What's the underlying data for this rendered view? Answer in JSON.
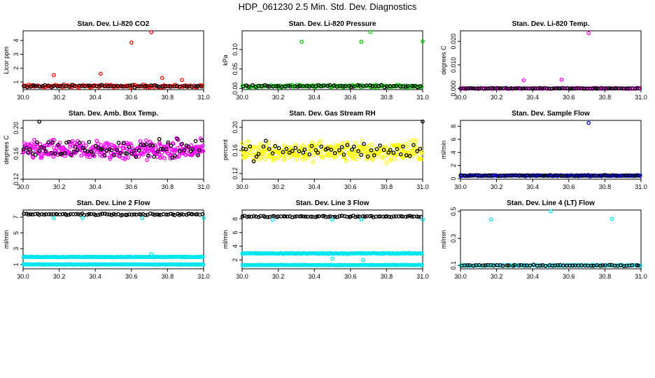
{
  "title": "HDP_061230  2.5 Min. Std. Dev. Diagnostics",
  "colors": {
    "black": "#000000",
    "red": "#ff0000",
    "green": "#00cc00",
    "magenta": "#ff00ff",
    "yellow": "#ffff00",
    "blue": "#0000ff",
    "cyan": "#00e5ee"
  },
  "chart_data": [
    {
      "type": "scatter",
      "title": "Stan. Dev. Li-820 CO2",
      "xlabel": "",
      "ylabel": "Licor ppm",
      "xlim": [
        30.0,
        31.0
      ],
      "ylim": [
        0.45,
        4.7
      ],
      "xticks": [
        "30.0",
        "30.2",
        "30.4",
        "30.6",
        "30.8",
        "31.0"
      ],
      "yticks": [
        "1",
        "2",
        "3",
        "4"
      ],
      "series": [
        {
          "name": "red points",
          "color": "red",
          "baseline": 0.7,
          "spread": 0.15,
          "count": 130
        },
        {
          "name": "black points",
          "color": "black",
          "baseline": 0.7,
          "spread": 0.12,
          "count": 60
        }
      ],
      "outliers": [
        {
          "x": 0.17,
          "y": 1.5,
          "color": "red"
        },
        {
          "x": 0.43,
          "y": 1.6,
          "color": "red"
        },
        {
          "x": 0.6,
          "y": 3.85,
          "color": "red"
        },
        {
          "x": 0.71,
          "y": 4.6,
          "color": "red"
        },
        {
          "x": 0.77,
          "y": 1.3,
          "color": "red"
        },
        {
          "x": 0.88,
          "y": 1.15,
          "color": "red"
        }
      ]
    },
    {
      "type": "scatter",
      "title": "Stan. Dev. Li-820 Pressure",
      "xlabel": "",
      "ylabel": "kPa",
      "xlim": [
        30.0,
        31.0
      ],
      "ylim": [
        -0.003,
        0.148
      ],
      "xticks": [
        "30.0",
        "30.2",
        "30.4",
        "30.6",
        "30.8",
        "31.0"
      ],
      "yticks": [
        "0.00",
        "0.05",
        "0.10"
      ],
      "series": [
        {
          "name": "green points",
          "color": "green",
          "baseline": 0.006,
          "spread": 0.005,
          "count": 130
        },
        {
          "name": "black points",
          "color": "black",
          "baseline": 0.006,
          "spread": 0.004,
          "count": 60
        }
      ],
      "outliers": [
        {
          "x": 0.33,
          "y": 0.12,
          "color": "green"
        },
        {
          "x": 0.66,
          "y": 0.12,
          "color": "green"
        },
        {
          "x": 0.71,
          "y": 0.145,
          "color": "green"
        },
        {
          "x": 1.0,
          "y": 0.121,
          "color": "green"
        }
      ]
    },
    {
      "type": "scatter",
      "title": "Stan. Dev. Li-820 Temp.",
      "xlabel": "",
      "ylabel": "degrees C",
      "xlim": [
        30.0,
        31.0
      ],
      "ylim": [
        -0.0005,
        0.0245
      ],
      "xticks": [
        "30.0",
        "30.2",
        "30.4",
        "30.6",
        "30.8",
        "31.0"
      ],
      "yticks": [
        "0.000",
        "0.010",
        "0.020"
      ],
      "series": [
        {
          "name": "magenta points",
          "color": "magenta",
          "baseline": 0.0,
          "spread": 0.0003,
          "count": 130
        },
        {
          "name": "black points",
          "color": "black",
          "baseline": 0.0,
          "spread": 0.0002,
          "count": 80
        }
      ],
      "outliers": [
        {
          "x": 0.35,
          "y": 0.0035,
          "color": "magenta"
        },
        {
          "x": 0.56,
          "y": 0.0037,
          "color": "magenta"
        },
        {
          "x": 0.71,
          "y": 0.0235,
          "color": "magenta"
        }
      ]
    },
    {
      "type": "scatter",
      "title": "Stan. Dev. Amb. Box Temp.",
      "xlabel": "",
      "ylabel": "degrees C",
      "xlim": [
        30.0,
        31.0
      ],
      "ylim": [
        0.12,
        0.212
      ],
      "xticks": [
        "30.0",
        "30.2",
        "30.4",
        "30.6",
        "30.8",
        "31.0"
      ],
      "yticks": [
        "0.12",
        "0.16",
        "0.20"
      ],
      "series": [
        {
          "name": "magenta points",
          "color": "magenta",
          "baseline": 0.165,
          "spread": 0.022,
          "count": 330
        },
        {
          "name": "black points",
          "color": "black",
          "baseline": 0.168,
          "spread": 0.02,
          "count": 80
        }
      ],
      "outliers": [
        {
          "x": 0.09,
          "y": 0.21,
          "color": "black"
        }
      ]
    },
    {
      "type": "scatter",
      "title": "Stan. Dev. Gas Stream RH",
      "xlabel": "",
      "ylabel": "percent",
      "xlim": [
        30.0,
        31.0
      ],
      "ylim": [
        0.11,
        0.212
      ],
      "xticks": [
        "30.0",
        "30.2",
        "30.4",
        "30.6",
        "30.8",
        "31.0"
      ],
      "yticks": [
        "0.12",
        "0.16",
        "0.20"
      ],
      "series": [
        {
          "name": "yellow points",
          "color": "yellow",
          "baseline": 0.158,
          "spread": 0.025,
          "count": 330
        },
        {
          "name": "black points",
          "color": "black",
          "baseline": 0.16,
          "spread": 0.022,
          "count": 55
        }
      ],
      "outliers": [
        {
          "x": 1.0,
          "y": 0.21,
          "color": "black"
        }
      ]
    },
    {
      "type": "scatter",
      "title": "Stan. Dev. Sample Flow",
      "xlabel": "",
      "ylabel": "ml/min",
      "xlim": [
        30.0,
        31.0
      ],
      "ylim": [
        -0.1,
        8.9
      ],
      "xticks": [
        "30.0",
        "30.2",
        "30.4",
        "30.6",
        "30.8",
        "31.0"
      ],
      "yticks": [
        "0",
        "2",
        "4",
        "6",
        "8"
      ],
      "series": [
        {
          "name": "blue points",
          "color": "blue",
          "baseline": 0.45,
          "spread": 0.12,
          "count": 150
        },
        {
          "name": "black points",
          "color": "black",
          "baseline": 0.45,
          "spread": 0.1,
          "count": 60
        }
      ],
      "outliers": [
        {
          "x": 0.71,
          "y": 8.5,
          "color": "blue"
        }
      ]
    },
    {
      "type": "scatter",
      "title": "Stan. Dev. Line 2 Flow",
      "xlabel": "",
      "ylabel": "ml/min",
      "xlim": [
        30.0,
        31.0
      ],
      "ylim": [
        0.45,
        7.9
      ],
      "xticks": [
        "30.0",
        "30.2",
        "30.4",
        "30.6",
        "30.8",
        "31.0"
      ],
      "yticks": [
        "1",
        "3",
        "5",
        "7"
      ],
      "series": [
        {
          "name": "black points",
          "color": "black",
          "baseline": 7.35,
          "spread": 0.15,
          "count": 80
        },
        {
          "name": "cyan upper band",
          "color": "cyan",
          "baseline": 1.95,
          "spread": 0.07,
          "count": 220
        },
        {
          "name": "cyan lower band",
          "color": "cyan",
          "baseline": 1.0,
          "spread": 0.05,
          "count": 200
        }
      ],
      "outliers": [
        {
          "x": 0.17,
          "y": 6.9,
          "color": "cyan"
        },
        {
          "x": 0.33,
          "y": 6.9,
          "color": "cyan"
        },
        {
          "x": 0.66,
          "y": 6.9,
          "color": "cyan"
        },
        {
          "x": 0.71,
          "y": 2.3,
          "color": "cyan"
        },
        {
          "x": 1.0,
          "y": 6.9,
          "color": "cyan"
        }
      ]
    },
    {
      "type": "scatter",
      "title": "Stan. Dev. Line 3 Flow",
      "xlabel": "",
      "ylabel": "ml/min",
      "xlim": [
        30.0,
        31.0
      ],
      "ylim": [
        0.7,
        9.3
      ],
      "xticks": [
        "30.0",
        "30.2",
        "30.4",
        "30.6",
        "30.8",
        "31.0"
      ],
      "yticks": [
        "2",
        "4",
        "6",
        "8"
      ],
      "series": [
        {
          "name": "black points",
          "color": "black",
          "baseline": 8.35,
          "spread": 0.15,
          "count": 80
        },
        {
          "name": "cyan upper band",
          "color": "cyan",
          "baseline": 2.95,
          "spread": 0.12,
          "count": 220
        },
        {
          "name": "cyan lower band",
          "color": "cyan",
          "baseline": 1.25,
          "spread": 0.05,
          "count": 200
        }
      ],
      "outliers": [
        {
          "x": 0.17,
          "y": 7.9,
          "color": "cyan"
        },
        {
          "x": 0.5,
          "y": 7.9,
          "color": "cyan"
        },
        {
          "x": 0.66,
          "y": 7.9,
          "color": "cyan"
        },
        {
          "x": 0.5,
          "y": 2.2,
          "color": "cyan"
        },
        {
          "x": 0.67,
          "y": 2.0,
          "color": "cyan"
        },
        {
          "x": 1.0,
          "y": 7.9,
          "color": "cyan"
        }
      ]
    },
    {
      "type": "scatter",
      "title": "Stan. Dev. Line 4 (LT) Flow",
      "xlabel": "",
      "ylabel": "ml/min",
      "xlim": [
        30.0,
        31.0
      ],
      "ylim": [
        0.075,
        0.51
      ],
      "xticks": [
        "30.0",
        "30.2",
        "30.4",
        "30.6",
        "30.8",
        "31.0"
      ],
      "yticks": [
        "0.1",
        "0.3",
        "0.5"
      ],
      "series": [
        {
          "name": "cyan points",
          "color": "cyan",
          "baseline": 0.1,
          "spread": 0.006,
          "count": 130
        },
        {
          "name": "black points",
          "color": "black",
          "baseline": 0.1,
          "spread": 0.007,
          "count": 60
        }
      ],
      "outliers": [
        {
          "x": 0.17,
          "y": 0.44,
          "color": "cyan"
        },
        {
          "x": 0.5,
          "y": 0.5,
          "color": "cyan"
        },
        {
          "x": 0.84,
          "y": 0.445,
          "color": "cyan"
        }
      ]
    }
  ]
}
